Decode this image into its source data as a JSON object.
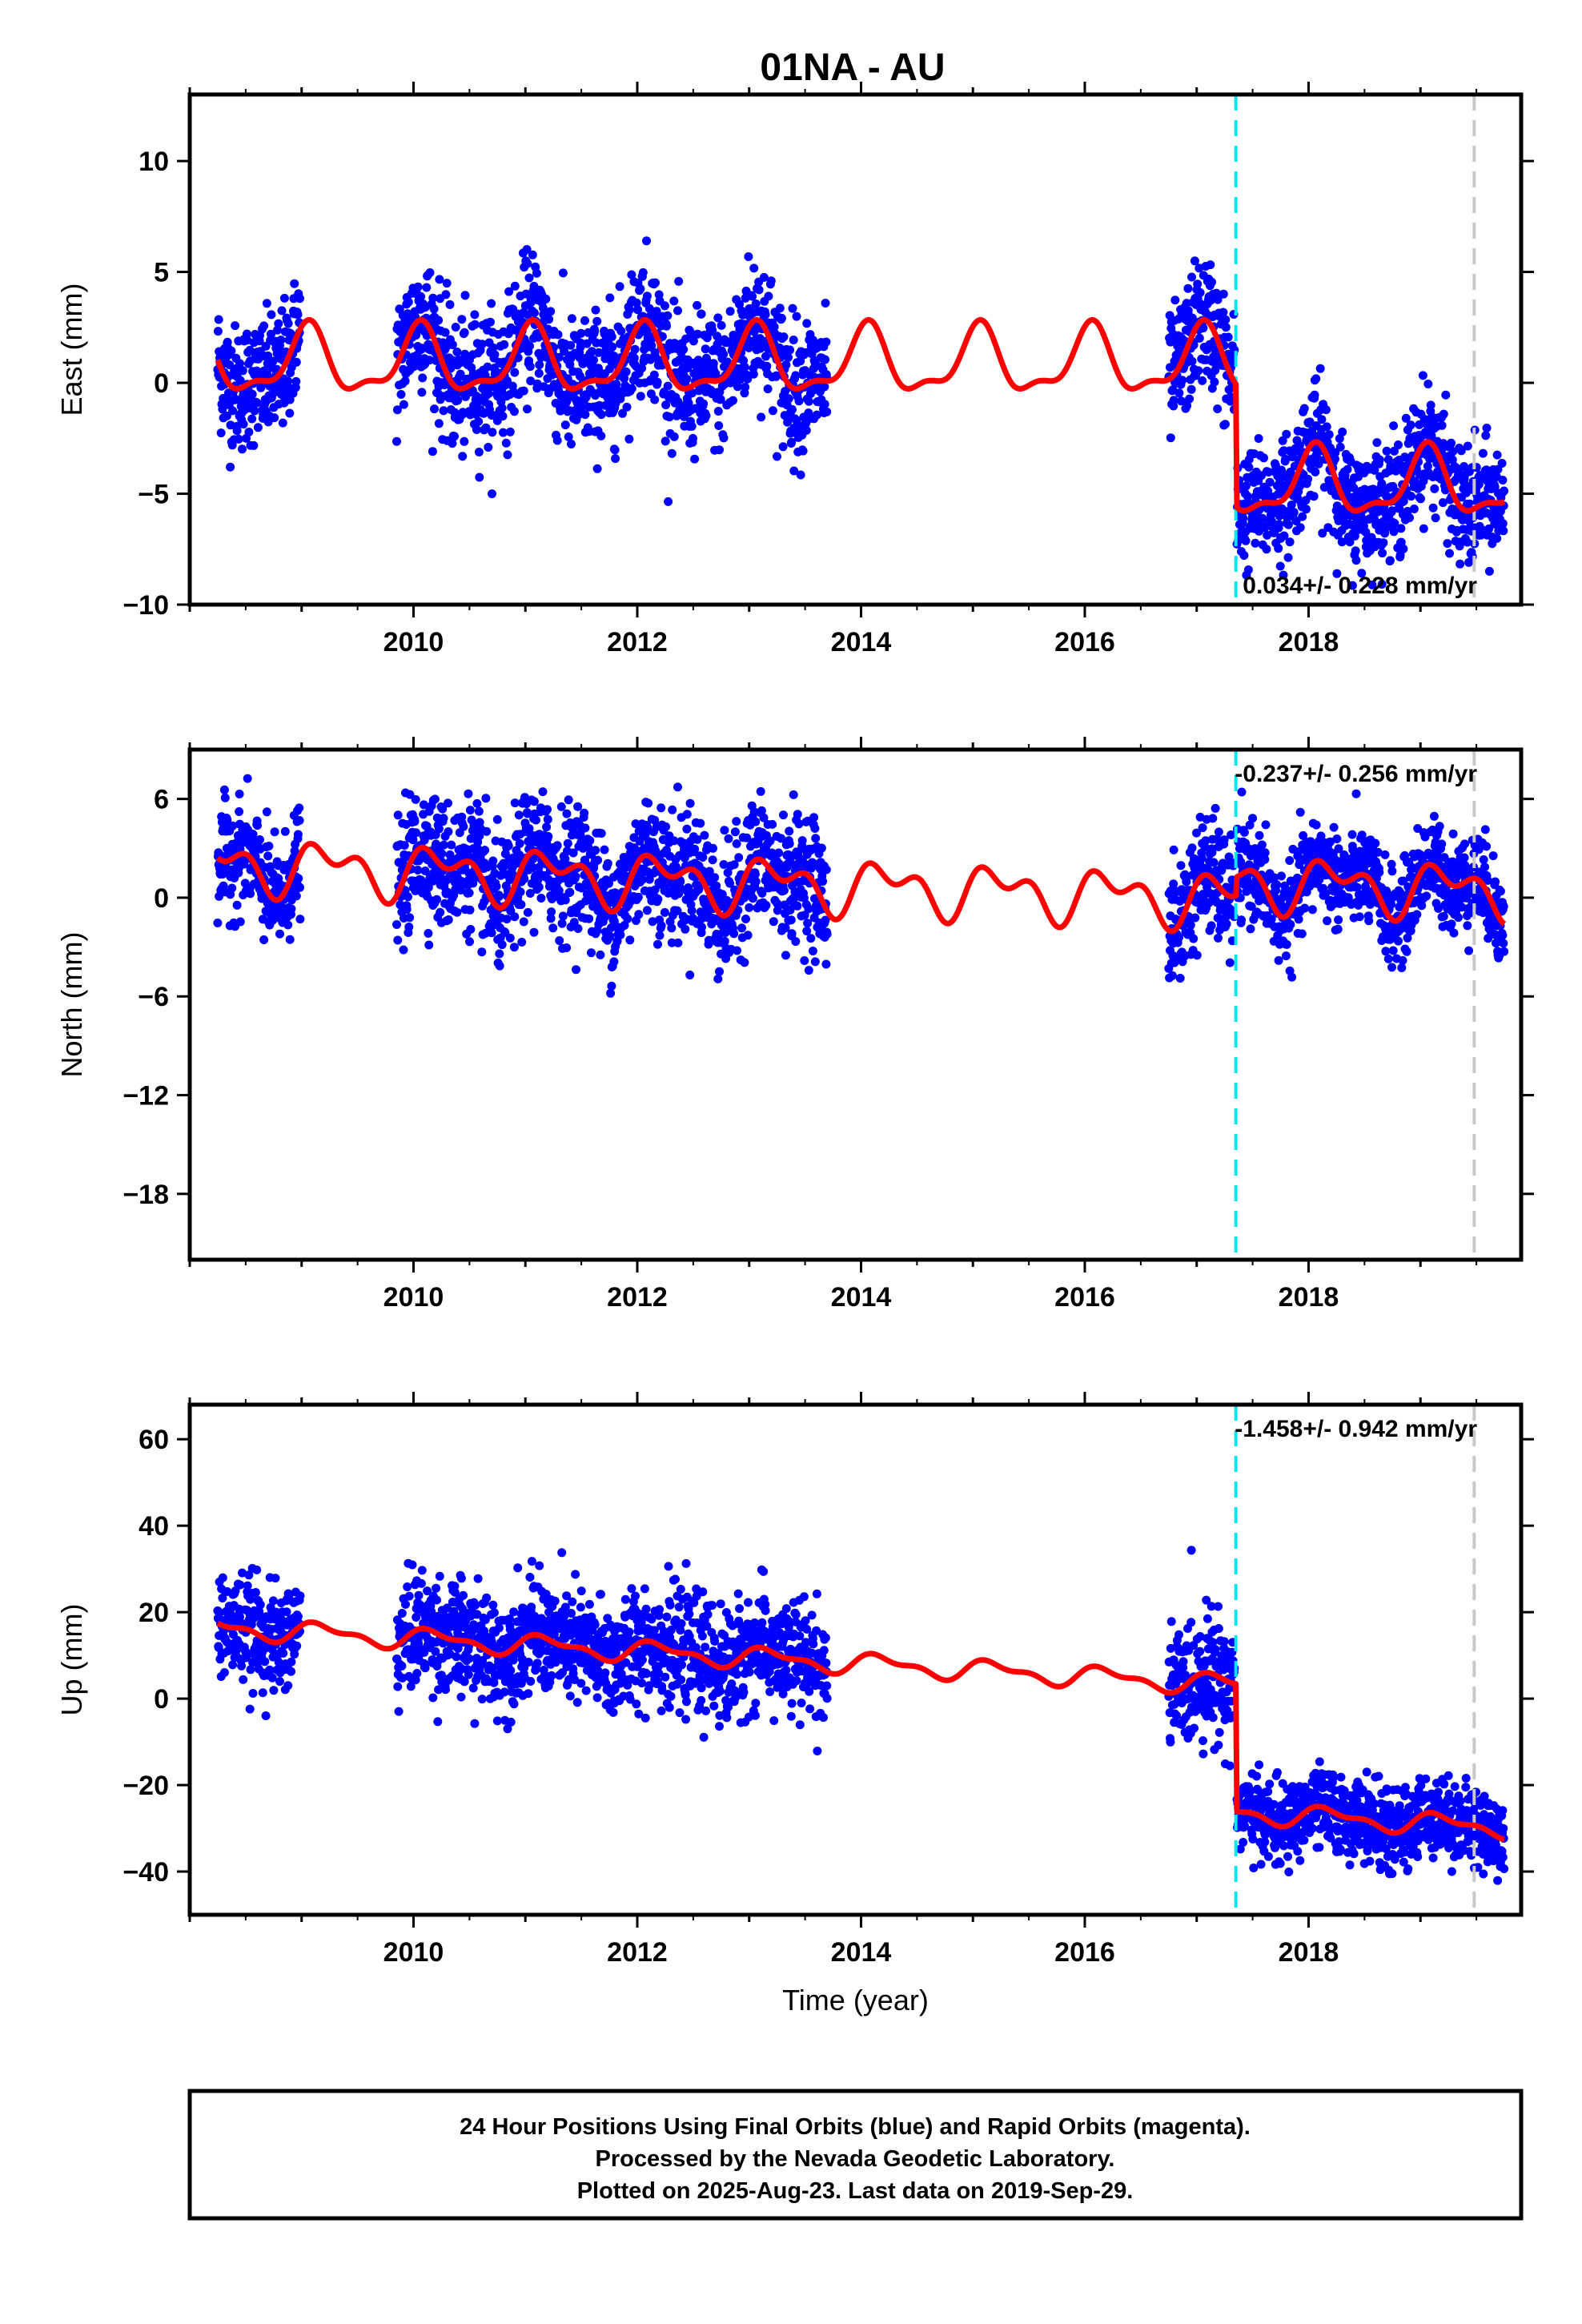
{
  "title": "01NA - AU",
  "footer": {
    "lines": [
      "24 Hour Positions Using Final Orbits (blue) and Rapid Orbits (magenta).",
      "Processed by the Nevada Geodetic Laboratory.",
      "Plotted on 2025-Aug-23. Last data on 2019-Sep-29."
    ]
  },
  "colors": {
    "data": "#0000ff",
    "model": "#ff0000",
    "equipment_change": "#00e5ee",
    "other_event": "#c8c8c8",
    "frame": "#000000"
  },
  "chart_data": [
    {
      "type": "scatter",
      "component": "East",
      "ylabel": "East (mm)",
      "xlabel": "",
      "xlim": [
        2008.0,
        2019.9
      ],
      "ylim": [
        -10,
        13
      ],
      "yticks": [
        -10,
        -5,
        0,
        5,
        10
      ],
      "xticks": [
        2010,
        2012,
        2014,
        2016,
        2018
      ],
      "trend_label": "0.034+/- 0.228 mm/yr",
      "legend": "none",
      "grid": false,
      "events": [
        {
          "x": 2017.35,
          "kind": "equipment_change"
        },
        {
          "x": 2019.48,
          "kind": "other_event"
        }
      ],
      "model": {
        "segments": [
          {
            "x0": 2008.25,
            "x1": 2017.35,
            "offset": 0.9,
            "rate": 0.0
          },
          {
            "x0": 2017.36,
            "x1": 2019.75,
            "offset": -4.6,
            "rate": 0.0
          }
        ],
        "annual_amp": 1.4,
        "annual_phase": 1.25,
        "semiannual_amp": 0.55,
        "semiannual_phase": 0.6
      },
      "data_periods": [
        {
          "x0": 2008.25,
          "x1": 2008.99,
          "offset": 0.9,
          "sigma": 1.4
        },
        {
          "x0": 2009.85,
          "x1": 2013.7,
          "offset": 0.9,
          "sigma": 1.5
        },
        {
          "x0": 2016.75,
          "x1": 2017.34,
          "offset": 0.9,
          "sigma": 1.4
        },
        {
          "x0": 2017.36,
          "x1": 2019.75,
          "offset": -4.6,
          "sigma": 1.3
        }
      ]
    },
    {
      "type": "scatter",
      "component": "North",
      "ylabel": "North (mm)",
      "xlabel": "",
      "xlim": [
        2008.0,
        2019.9
      ],
      "ylim": [
        -22,
        9
      ],
      "yticks": [
        -18,
        -12,
        -6,
        0,
        6
      ],
      "xticks": [
        2010,
        2012,
        2014,
        2016,
        2018
      ],
      "trend_label": "-0.237+/- 0.256 mm/yr",
      "legend": "none",
      "grid": false,
      "events": [
        {
          "x": 2017.35,
          "kind": "equipment_change"
        },
        {
          "x": 2019.48,
          "kind": "other_event"
        }
      ],
      "model": {
        "segments": [
          {
            "x0": 2008.25,
            "x1": 2017.35,
            "offset": 0.9,
            "rate": -0.237
          },
          {
            "x0": 2017.36,
            "x1": 2019.75,
            "offset": 2.0,
            "rate": -0.237
          }
        ],
        "annual_amp": 1.2,
        "annual_phase": 0.1,
        "semiannual_amp": 0.9,
        "semiannual_phase": 1.1
      },
      "data_periods": [
        {
          "x0": 2008.25,
          "x1": 2008.99,
          "offset": 0.9,
          "sigma": 1.6
        },
        {
          "x0": 2009.85,
          "x1": 2013.7,
          "offset": 0.9,
          "sigma": 1.9
        },
        {
          "x0": 2016.75,
          "x1": 2017.34,
          "offset": 0.9,
          "sigma": 1.8
        },
        {
          "x0": 2017.36,
          "x1": 2019.75,
          "offset": 2.0,
          "sigma": 1.4
        }
      ]
    },
    {
      "type": "scatter",
      "component": "Up",
      "ylabel": "Up (mm)",
      "xlabel": "Time (year)",
      "xlim": [
        2008.0,
        2019.9
      ],
      "ylim": [
        -50,
        68
      ],
      "yticks": [
        -40,
        -20,
        0,
        20,
        40,
        60
      ],
      "xticks": [
        2010,
        2012,
        2014,
        2016,
        2018
      ],
      "trend_label": "-1.458+/- 0.942 mm/yr",
      "legend": "none",
      "grid": false,
      "events": [
        {
          "x": 2017.35,
          "kind": "equipment_change"
        },
        {
          "x": 2019.48,
          "kind": "other_event"
        }
      ],
      "model": {
        "segments": [
          {
            "x0": 2008.25,
            "x1": 2017.35,
            "offset": 9.5,
            "rate": -1.458
          },
          {
            "x0": 2017.36,
            "x1": 2019.75,
            "offset": -20.0,
            "rate": -1.458
          }
        ],
        "annual_amp": 2.0,
        "annual_phase": 0.4,
        "semiannual_amp": 1.0,
        "semiannual_phase": 1.0
      },
      "data_periods": [
        {
          "x0": 2008.25,
          "x1": 2008.99,
          "offset": 9.5,
          "sigma": 6.0
        },
        {
          "x0": 2009.85,
          "x1": 2013.7,
          "offset": 9.5,
          "sigma": 6.5
        },
        {
          "x0": 2016.75,
          "x1": 2017.34,
          "offset": 9.5,
          "sigma": 7.0
        },
        {
          "x0": 2017.36,
          "x1": 2019.75,
          "offset": -20.0,
          "sigma": 4.5
        }
      ]
    }
  ]
}
